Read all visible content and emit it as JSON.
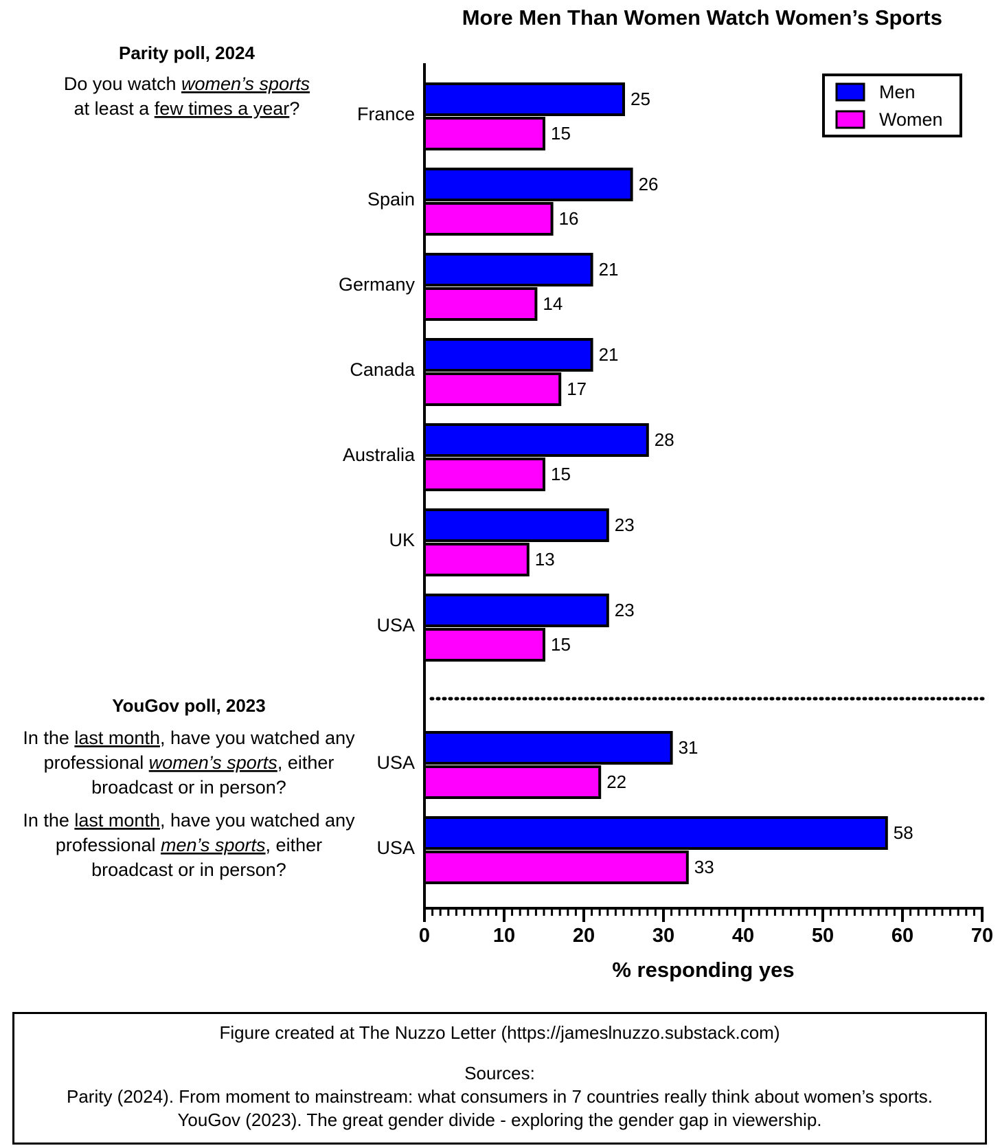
{
  "title": "More Men Than Women Watch Women’s Sports",
  "chart_data": {
    "type": "bar",
    "orientation": "horizontal",
    "title": "More Men Than Women Watch Women’s Sports",
    "xlabel": "% responding yes",
    "xlim": [
      0,
      70
    ],
    "xticks": [
      "0",
      "10",
      "20",
      "30",
      "40",
      "50",
      "60",
      "70"
    ],
    "legend": {
      "placement": "top-right",
      "items": [
        {
          "label": "Men",
          "color": "#0000ff"
        },
        {
          "label": "Women",
          "color": "#ff00ff"
        }
      ]
    },
    "groups": [
      {
        "title": "Parity poll, 2024",
        "questions": [
          {
            "lines": [
              [
                {
                  "t": "Do you watch "
                },
                {
                  "t": "women’s sports",
                  "u": true,
                  "i": true
                }
              ],
              [
                {
                  "t": "at least a "
                },
                {
                  "t": "few times a year",
                  "u": true
                },
                {
                  "t": "?"
                }
              ]
            ]
          }
        ],
        "categories": [
          "France",
          "Spain",
          "Germany",
          "Canada",
          "Australia",
          "UK",
          "USA"
        ],
        "series": [
          {
            "name": "Men",
            "values": [
              25,
              26,
              21,
              21,
              28,
              23,
              23
            ]
          },
          {
            "name": "Women",
            "values": [
              15,
              16,
              14,
              17,
              15,
              13,
              15
            ]
          }
        ]
      },
      {
        "title": "YouGov poll, 2023",
        "questions": [
          {
            "lines": [
              [
                {
                  "t": "In the "
                },
                {
                  "t": "last month",
                  "u": true
                },
                {
                  "t": ", have you watched any"
                }
              ],
              [
                {
                  "t": "professional "
                },
                {
                  "t": "women’s sports",
                  "u": true,
                  "i": true
                },
                {
                  "t": ", either"
                }
              ],
              [
                {
                  "t": "broadcast or in person?"
                }
              ]
            ]
          },
          {
            "lines": [
              [
                {
                  "t": "In the "
                },
                {
                  "t": "last month",
                  "u": true
                },
                {
                  "t": ", have you watched any"
                }
              ],
              [
                {
                  "t": "professional "
                },
                {
                  "t": "men’s sports",
                  "u": true,
                  "i": true
                },
                {
                  "t": ", either"
                }
              ],
              [
                {
                  "t": "broadcast or in person?"
                }
              ]
            ]
          }
        ],
        "categories": [
          "USA",
          "USA"
        ],
        "series": [
          {
            "name": "Men",
            "values": [
              31,
              58
            ]
          },
          {
            "name": "Women",
            "values": [
              22,
              33
            ]
          }
        ]
      }
    ]
  },
  "credits": {
    "created": "Figure created at The Nuzzo Letter (https://jameslnuzzo.substack.com)",
    "sources_label": "Sources:",
    "source_1": "Parity (2024). From moment to mainstream: what consumers in 7 countries really think about women’s sports.",
    "source_2": "YouGov (2023). The great gender divide - exploring the gender gap in viewership."
  }
}
